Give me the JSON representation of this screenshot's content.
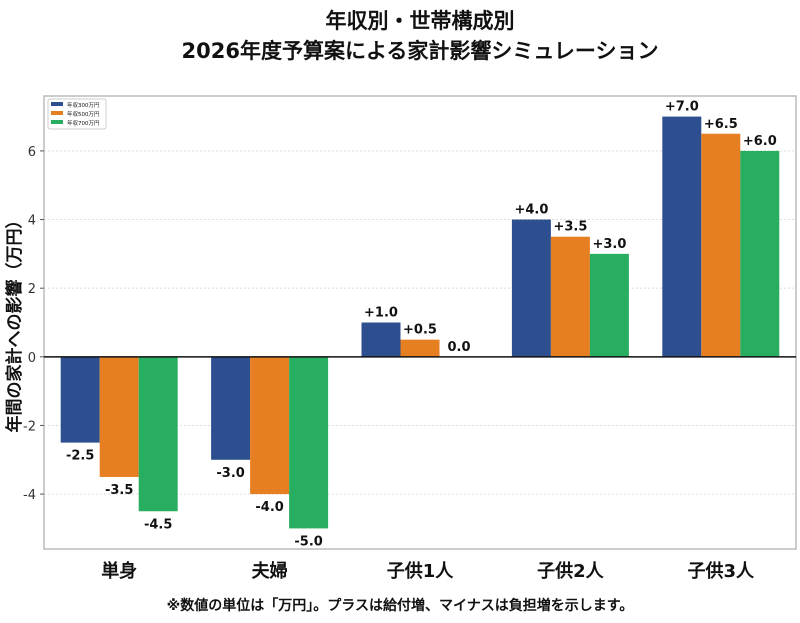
{
  "chart_data": {
    "type": "bar",
    "title_line1": "年収別・世帯構成別",
    "title_line2": "2026年度予算案による家計影響シミュレーション",
    "xlabel": "",
    "ylabel": "年間の家計への影響（万円）",
    "ylim": [
      -5.6,
      7.6
    ],
    "yticks": [
      -4,
      -2,
      0,
      2,
      4,
      6
    ],
    "grid": "horizontal-dotted",
    "legend_position": "top-left",
    "categories": [
      "単身",
      "夫婦",
      "子供1人",
      "子供2人",
      "子供3人"
    ],
    "series": [
      {
        "name": "年収300万円",
        "color": "#2e4f8f",
        "values": [
          -2.5,
          -3.0,
          1.0,
          4.0,
          7.0
        ],
        "labels": [
          "-2.5",
          "-3.0",
          "+1.0",
          "+4.0",
          "+7.0"
        ]
      },
      {
        "name": "年収500万円",
        "color": "#e67e22",
        "values": [
          -3.5,
          -4.0,
          0.5,
          3.5,
          6.5
        ],
        "labels": [
          "-3.5",
          "-4.0",
          "+0.5",
          "+3.5",
          "+6.5"
        ]
      },
      {
        "name": "年収700万円",
        "color": "#27ae60",
        "values": [
          -4.5,
          -5.0,
          0.0,
          3.0,
          6.0
        ],
        "labels": [
          "-4.5",
          "-5.0",
          "0.0",
          "+3.0",
          "+6.0"
        ]
      }
    ],
    "footnote": "※数値の単位は「万円」。プラスは給付増、マイナスは負担増を示します。"
  }
}
